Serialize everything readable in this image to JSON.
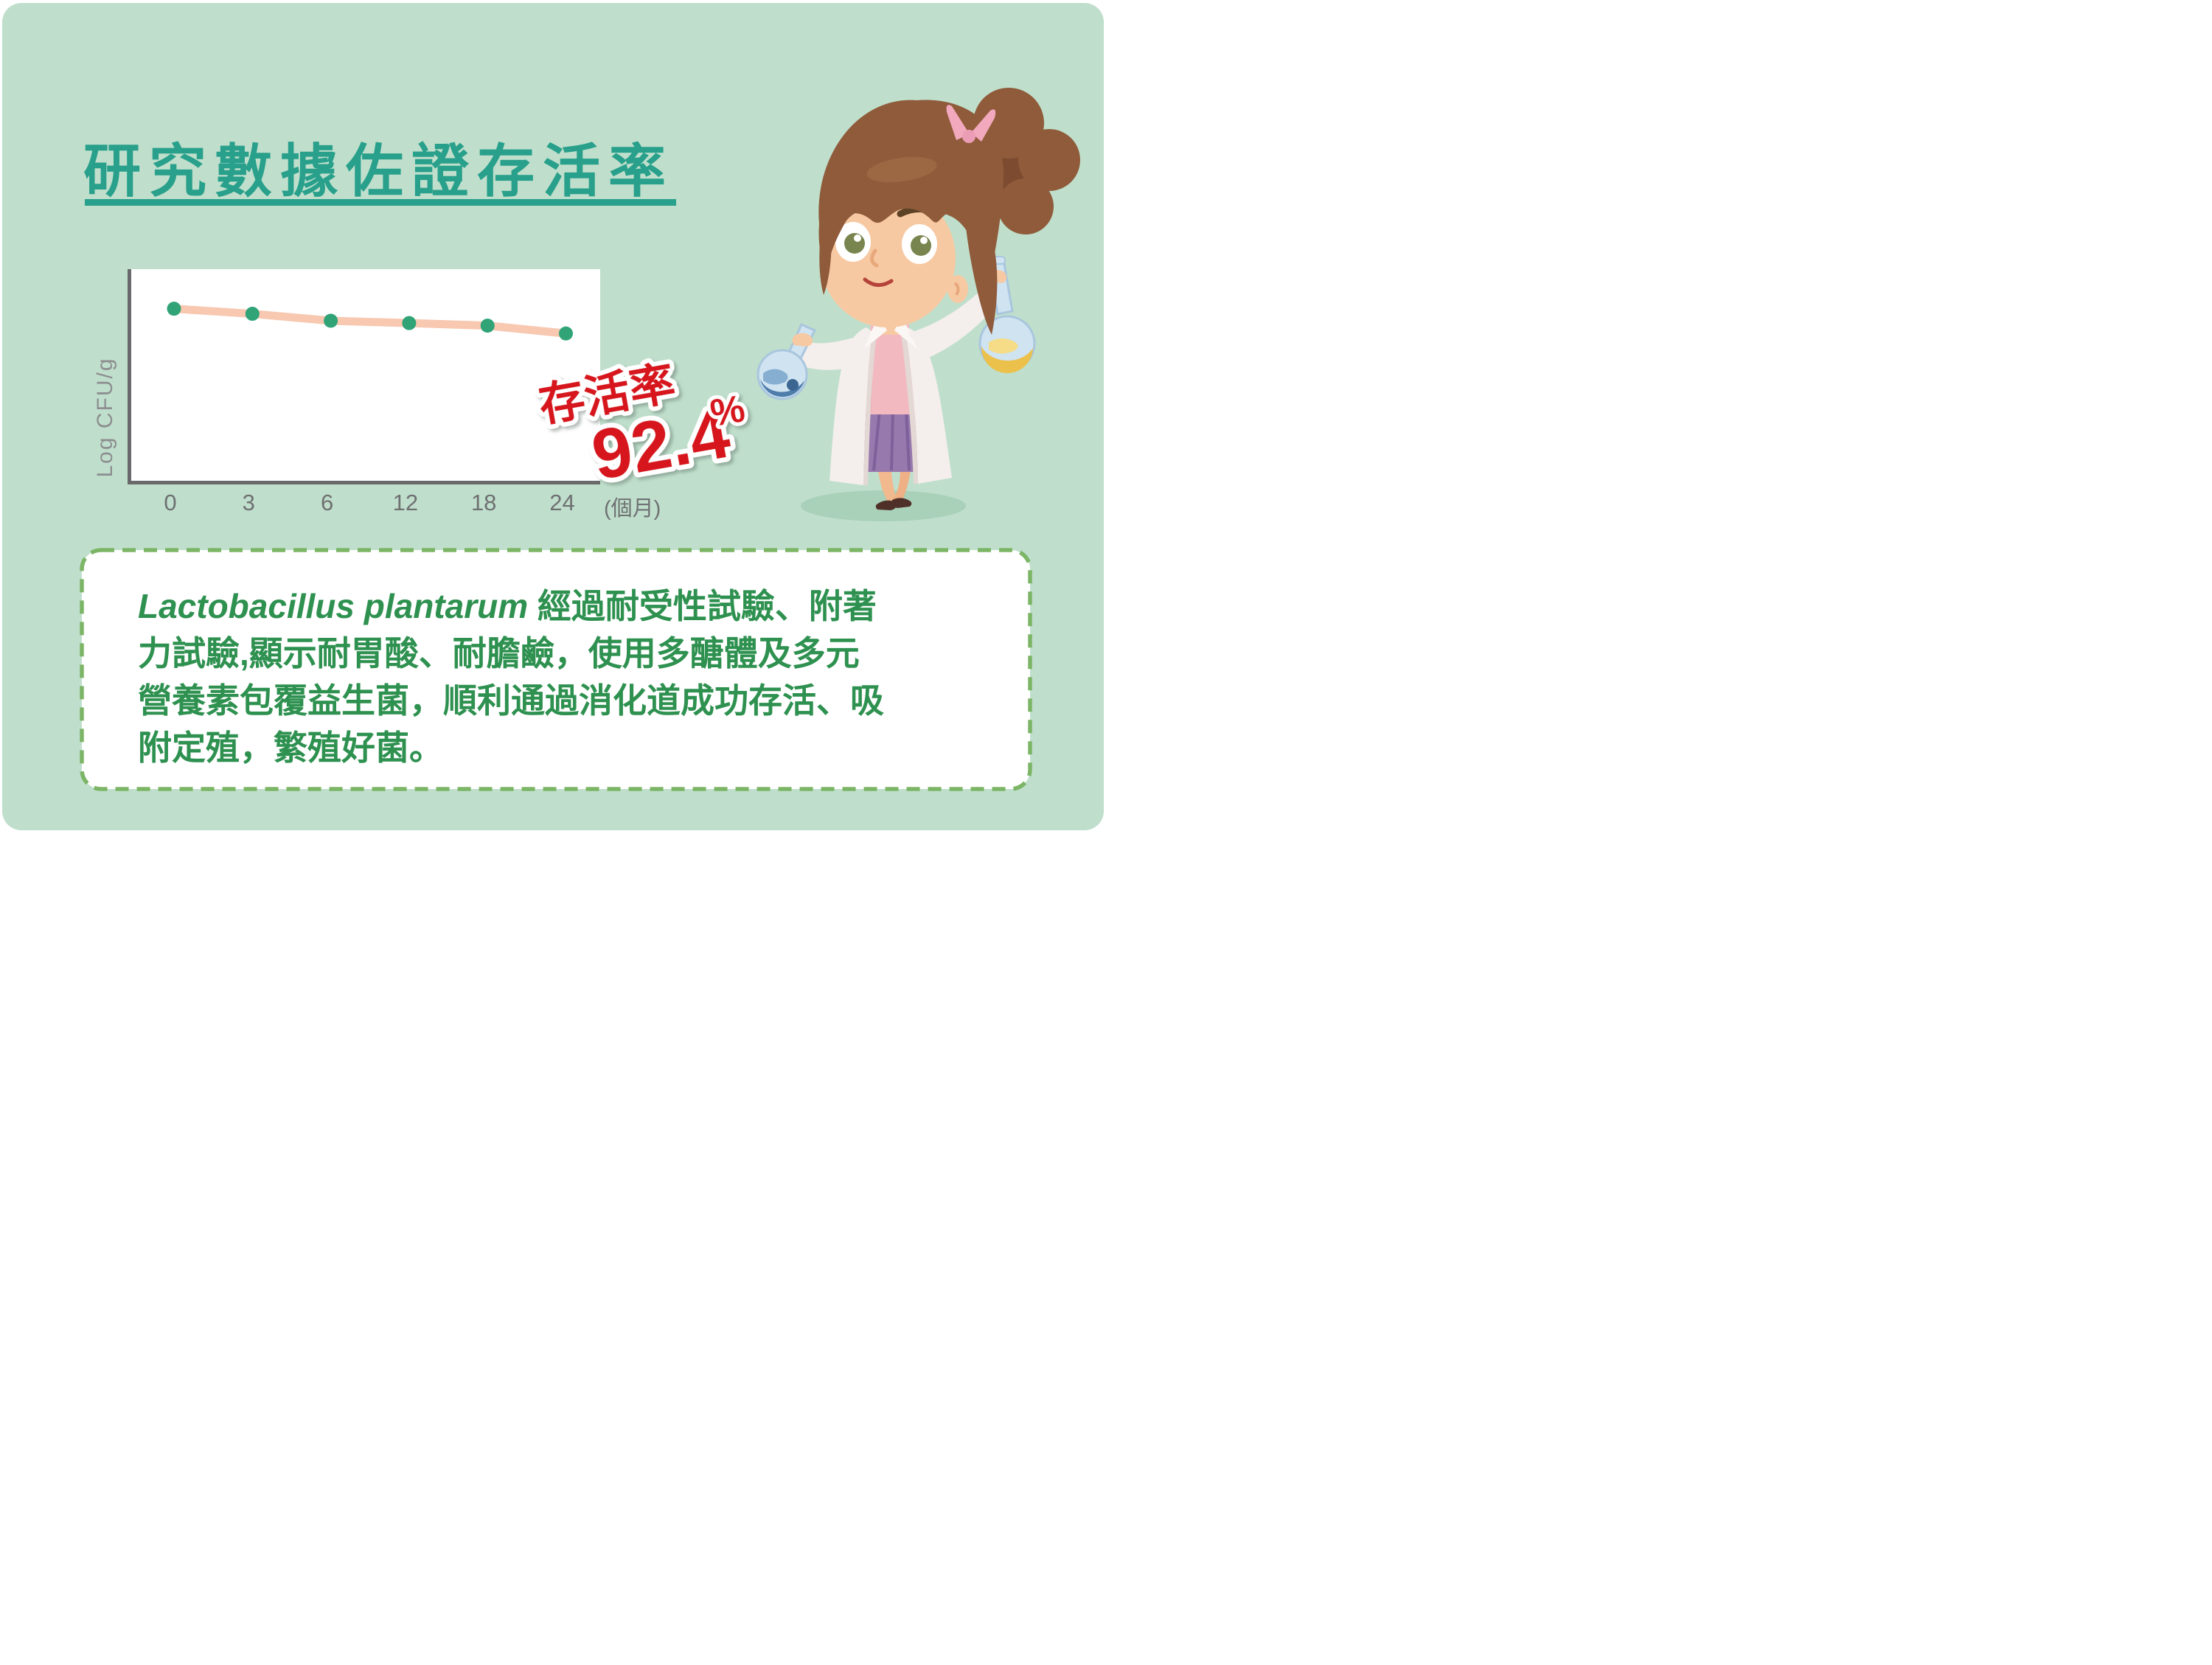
{
  "page": {
    "background_color": "#bfdfcc"
  },
  "header": {
    "title": "研究數據佐證存活率",
    "title_color": "#28a08b"
  },
  "chart_data": {
    "type": "line",
    "title": "",
    "xlabel": "",
    "x_unit_label": "(個月)",
    "ylabel": "Log CFU/g",
    "x_categories": [
      "0",
      "3",
      "6",
      "12",
      "18",
      "24"
    ],
    "y_tick_labels": [],
    "series": [
      {
        "name": "Log CFU/g",
        "y_norm_from_plot_top": [
          0.187,
          0.211,
          0.244,
          0.255,
          0.267,
          0.304
        ]
      }
    ],
    "annotation": {
      "label": "存活率",
      "value": "92.4",
      "unit": "%"
    },
    "grid": false,
    "legend": false,
    "plot_bg": "#ffffff",
    "line_color": "#f8c8b1",
    "point_color": "#30a377",
    "axis_color": "#69696b",
    "tick_color": "#6f7072"
  },
  "survival_note": {
    "label": "存活率",
    "value": "92.4",
    "unit": "%",
    "color": "#d6151c"
  },
  "info_box": {
    "border_color": "#7cb566",
    "text_color": "#2e9150",
    "latin_italic": "Lactobacillus plantarum",
    "line1_rest": " 經過耐受性試驗、附著",
    "line2": "力試驗,顯示耐胃酸、耐膽鹼，使用多醣體及多元",
    "line3": "營養素包覆益生菌，順利通過消化道成功存活、吸",
    "line4": "附定殖，繁殖好菌。"
  }
}
